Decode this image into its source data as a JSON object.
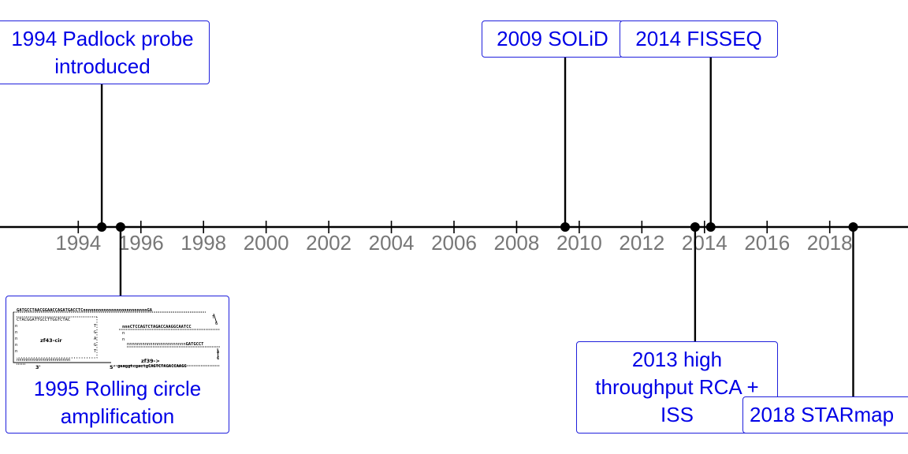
{
  "axis": {
    "year_start": 1991.5,
    "year_end": 2020.5,
    "ticks": [
      1994,
      1996,
      1998,
      2000,
      2002,
      2004,
      2006,
      2008,
      2010,
      2012,
      2014,
      2016,
      2018
    ],
    "line_color": "#000000",
    "tick_label_color": "#777777"
  },
  "events": [
    {
      "id": "padlock",
      "year": 1994.75,
      "side": "above",
      "lines": [
        "1994 Padlock probe",
        "introduced"
      ],
      "has_image": false
    },
    {
      "id": "rolling-circle",
      "year": 1995.35,
      "side": "below",
      "lines": [
        "1995 Rolling circle",
        "amplification"
      ],
      "has_image": true,
      "image_labels": [
        "zf43-cir",
        "zf39->",
        "3'",
        "5'"
      ]
    },
    {
      "id": "solid",
      "year": 2009.55,
      "side": "above",
      "lines": [
        "2009 SOLiD"
      ],
      "has_image": false
    },
    {
      "id": "high-throughput",
      "year": 2013.7,
      "side": "below",
      "lines": [
        "2013 high",
        "throughput RCA +",
        "ISS"
      ],
      "has_image": false
    },
    {
      "id": "fisseq",
      "year": 2014.2,
      "side": "above",
      "lines": [
        "2014 FISSEQ"
      ],
      "has_image": false
    },
    {
      "id": "starmap",
      "year": 2018.75,
      "side": "below",
      "lines": [
        "2018 STARmap"
      ],
      "has_image": false
    }
  ],
  "colors": {
    "box_border": "#1f1fdc",
    "box_text": "#0000e6",
    "marker": "#000000"
  }
}
